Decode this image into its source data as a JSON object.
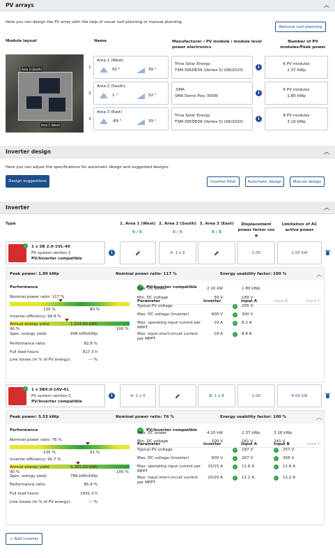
{
  "pv_arrays": {
    "title": "PV arrays",
    "desc": "Here you can design the PV array with the help of visual roof planning or manual planning.",
    "remove_btn": "Remove roof planning",
    "col_layout": "Module layout",
    "col_name": "Name",
    "col_manuf": "Manufacturer / PV module / module level power electronics",
    "col_num": "Number of PV modules/Peak power",
    "img_label1": "Area 2 (South)",
    "img_label2": "Area 1 (West)",
    "areas": [
      {
        "idx": "1",
        "name": "Area 1 (West)",
        "angle1": "91 °",
        "angle2": "39 °",
        "manuf": "Trina Solar Energy",
        "module": "TSM-395DE09 (Vertex S) (08/2020)",
        "num": "6 PV modules",
        "power": "2.37 kWp"
      },
      {
        "idx": "2",
        "name": "Area 2 (South)",
        "angle1": "1 °",
        "angle2": "52 °",
        "manuf": ".SMA",
        "module": "SMA Demo Poly 300W",
        "num": "6 PV modules",
        "power": "1.80 kWp"
      },
      {
        "idx": "3",
        "name": "Area 3 (East)",
        "angle1": "-89 °",
        "angle2": "39 °",
        "manuf": "Trina Solar Energy",
        "module": "TSM-395DE09 (Vertex S) (08/2020)",
        "num": "8 PV modules",
        "power": "3.16 kWp"
      }
    ]
  },
  "inverter_design": {
    "title": "Inverter design",
    "desc": "Here you can adjust the specifications for automatic design and suggested designs.",
    "suggest": "Design suggestions",
    "filter": "Inverter filter",
    "auto": "Automatic design",
    "manual": "Manual design"
  },
  "inverter": {
    "title": "Inverter",
    "col_type": "Type",
    "col_a1": "1. Area 1 (West)",
    "col_a2": "2. Area 2 (South)",
    "col_a3": "3. Area 3 (East)",
    "col_disp": "Displacement power factor cos φ",
    "col_lim": "Limitation of AC active power",
    "a1_count": "6 / 6",
    "a2_count": "6 / 6",
    "a3_count": "8 / 8",
    "units": [
      {
        "name": "1 x SB 2.0-1VL-40",
        "sub": "PV system section 1",
        "compat": "PV/Inverter compatible",
        "c1": "",
        "c2": "A: 1 x 6",
        "c3": "",
        "disp": "1.00",
        "lim": "2.00 kW",
        "peak": "Peak power: 1.80 kWp",
        "nominal": "Nominal power ratio: 117 %",
        "usability": "Energy usability factor: 100 %",
        "perf": "Performance",
        "npr": "Nominal power ratio: 117 %",
        "npr_l": "135 %",
        "npr_r": "80 %",
        "eff": "Inverter efficiency: 94.8 %",
        "eff_l": "90 %",
        "eff_r": "100 %",
        "stats": [
          [
            "Annual energy yield:",
            "1,634.60 kWh"
          ],
          [
            "Spec. energy yield:",
            "908 kWh/kWp"
          ],
          [
            "Performance ratio:",
            "82.8 %"
          ],
          [
            "Full load hours:",
            "817.3 h"
          ],
          [
            "Line losses (in % of PV energy):",
            "--- %"
          ]
        ],
        "compat_title": "PV/Inverter compatible",
        "h_param": "Parameter",
        "h_inv": "Inverter",
        "h_a": "Input A",
        "h_b": "Input B",
        "h_c": "Input C",
        "params": [
          [
            "Max. DC power",
            "2.10 kW",
            "1.80 kWp",
            "",
            false
          ],
          [
            "Min. DC voltage",
            "50 V",
            "189 V",
            "",
            false
          ],
          [
            "Typical PV voltage",
            "",
            "205 V",
            "",
            true
          ],
          [
            "Max. DC voltage (Inverter)",
            "600 V",
            "300 V",
            "",
            true
          ],
          [
            "Max. operating input current per MPPT",
            "10 A",
            "8.2 A",
            "",
            true
          ],
          [
            "Max. input short-circuit current per MPPT",
            "18 A",
            "8.8 A",
            "",
            true
          ]
        ]
      },
      {
        "name": "1 x SB4.0-1AV-41",
        "sub": "PV system section 2",
        "compat": "PV/Inverter compatible",
        "c1": "A: 1 x 6",
        "c2": "",
        "c3": "B: 1 x 8",
        "disp": "1.00",
        "lim": "4.00 kW",
        "peak": "Peak power: 5.53 kWp",
        "nominal": "Nominal power ratio: 76 %",
        "usability": "Energy usability factor: 100 %",
        "perf": "Performance",
        "npr": "Nominal power ratio: 76 %",
        "npr_l": "135 %",
        "npr_r": "61 %",
        "eff": "Inverter efficiency: 95.7 %",
        "eff_l": "90 %",
        "eff_r": "100 %",
        "stats": [
          [
            "Annual energy yield:",
            "4,365.03 kWh"
          ],
          [
            "Spec. energy yield:",
            "789 kWh/kWp"
          ],
          [
            "Performance ratio:",
            "85.4 %"
          ],
          [
            "Full load hours:",
            "1091.3 h"
          ],
          [
            "Line losses (in % of PV energy):",
            "--- %"
          ]
        ],
        "compat_title": "PV/Inverter compatible",
        "h_param": "Parameter",
        "h_inv": "Inverter",
        "h_a": "Input A",
        "h_b": "Input B",
        "h_c": "Input C",
        "params": [
          [
            "Max. DC power",
            "4.20 kW",
            "2.37 kWp",
            "3.16 kWp",
            false
          ],
          [
            "Min. DC voltage",
            "100 V",
            "181 V",
            "241 V",
            false
          ],
          [
            "Typical PV voltage",
            "",
            "197 V",
            "257 V",
            true
          ],
          [
            "Max. DC voltage (Inverter)",
            "600 V",
            "267 V",
            "356 V",
            true
          ],
          [
            "Max. operating input current per MPPT",
            "15/15 A",
            "11.6 A",
            "11.6 A",
            true
          ],
          [
            "Max. input short-circuit current per MPPT",
            "20/20 A",
            "12.2 A",
            "12.2 A",
            true
          ]
        ]
      }
    ],
    "add": "+ Add inverter"
  }
}
